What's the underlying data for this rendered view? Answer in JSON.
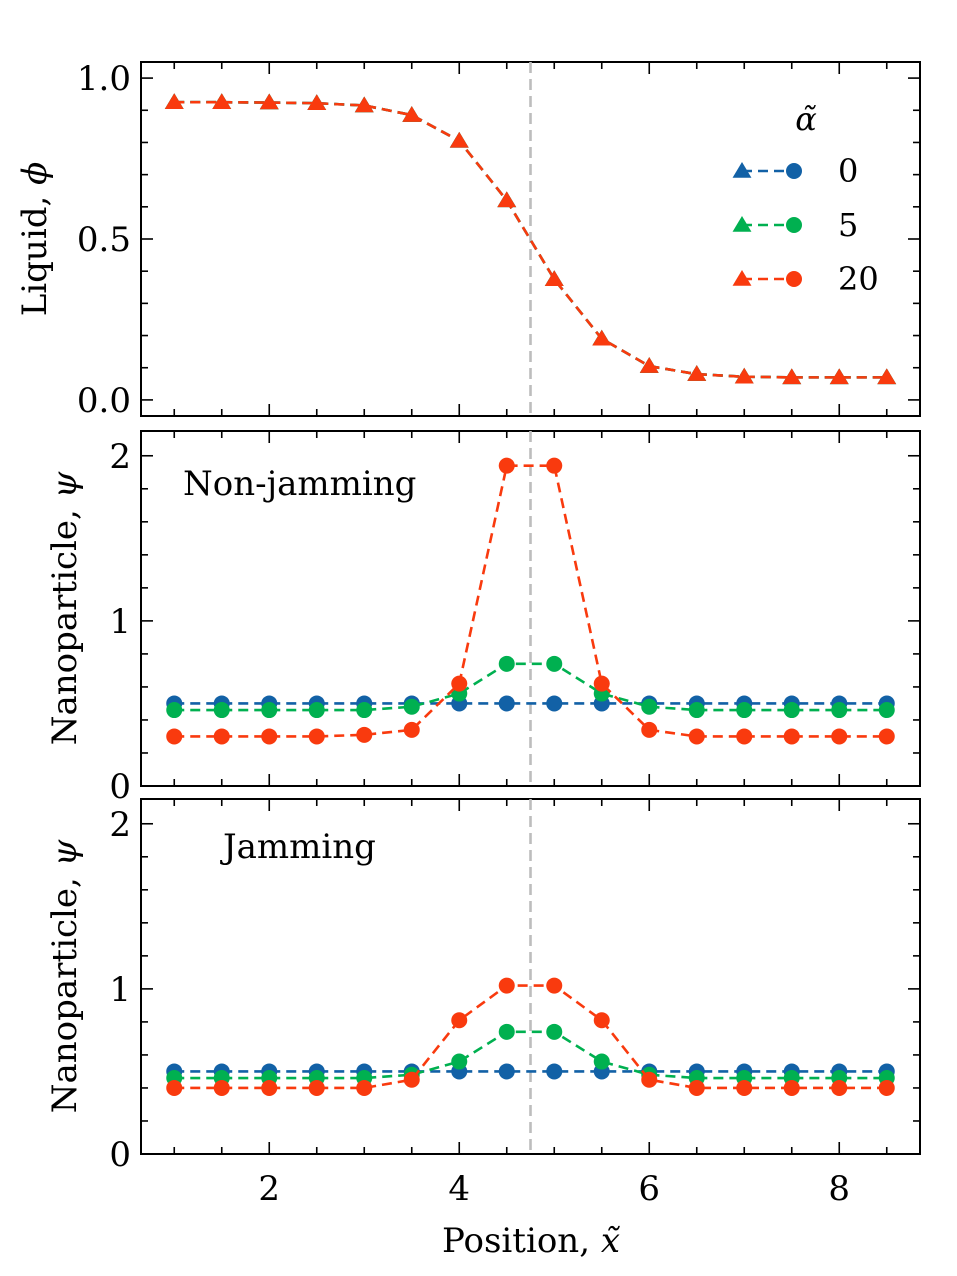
{
  "chart_data": {
    "type": "line",
    "x_label": "Position, x̃",
    "x_label_main": "Position, ",
    "x_label_symbol": "x̃",
    "xlim": [
      0.65,
      8.85
    ],
    "x_ticks": [
      2,
      4,
      6,
      8
    ],
    "x_tick_labels": [
      "2",
      "4",
      "6",
      "8"
    ],
    "x": [
      1.0,
      1.5,
      2.0,
      2.5,
      3.0,
      3.5,
      4.0,
      4.5,
      5.0,
      5.5,
      6.0,
      6.5,
      7.0,
      7.5,
      8.0,
      8.5
    ],
    "interface_line_x": 4.75,
    "legend": {
      "title": "α̃",
      "entries": [
        "0",
        "5",
        "20"
      ],
      "placement": "top-right of top panel"
    },
    "colors": {
      "0": "#1261a6",
      "5": "#00b050",
      "20": "#f93a0e",
      "interface": "#bdbdbd"
    },
    "panels": [
      {
        "id": "liquid",
        "ylabel_main": "Liquid, ",
        "ylabel_symbol": "ϕ",
        "ylim": [
          -0.05,
          1.05
        ],
        "y_ticks": [
          0.0,
          0.5,
          1.0
        ],
        "y_tick_labels": [
          "0.0",
          "0.5",
          "1.0"
        ],
        "annotation": "",
        "series": [
          {
            "name": "0",
            "marker": "triangle",
            "values": [
              0.925,
              0.925,
              0.924,
              0.922,
              0.915,
              0.885,
              0.805,
              0.62,
              0.375,
              0.19,
              0.105,
              0.08,
              0.072,
              0.07,
              0.07,
              0.07
            ]
          },
          {
            "name": "5",
            "marker": "triangle",
            "values": [
              0.925,
              0.925,
              0.924,
              0.922,
              0.915,
              0.885,
              0.805,
              0.62,
              0.375,
              0.19,
              0.105,
              0.08,
              0.072,
              0.07,
              0.07,
              0.07
            ]
          },
          {
            "name": "20",
            "marker": "triangle",
            "values": [
              0.925,
              0.925,
              0.924,
              0.922,
              0.915,
              0.885,
              0.805,
              0.62,
              0.375,
              0.19,
              0.105,
              0.08,
              0.072,
              0.07,
              0.07,
              0.07
            ]
          }
        ]
      },
      {
        "id": "non-jamming",
        "ylabel_main": "Nanoparticle, ",
        "ylabel_symbol": "ψ",
        "ylim": [
          0,
          2.15
        ],
        "y_ticks": [
          0,
          1,
          2
        ],
        "y_tick_labels": [
          "0",
          "1",
          "2"
        ],
        "annotation": "Non-jamming",
        "series": [
          {
            "name": "0",
            "marker": "circle",
            "values": [
              0.5,
              0.5,
              0.5,
              0.5,
              0.5,
              0.5,
              0.5,
              0.5,
              0.5,
              0.5,
              0.5,
              0.5,
              0.5,
              0.5,
              0.5,
              0.5
            ]
          },
          {
            "name": "5",
            "marker": "circle",
            "values": [
              0.46,
              0.46,
              0.46,
              0.46,
              0.46,
              0.48,
              0.56,
              0.74,
              0.74,
              0.56,
              0.48,
              0.46,
              0.46,
              0.46,
              0.46,
              0.46
            ]
          },
          {
            "name": "20",
            "marker": "circle",
            "values": [
              0.3,
              0.3,
              0.3,
              0.3,
              0.31,
              0.34,
              0.62,
              1.94,
              1.94,
              0.62,
              0.34,
              0.3,
              0.3,
              0.3,
              0.3,
              0.3
            ]
          }
        ]
      },
      {
        "id": "jamming",
        "ylabel_main": "Nanoparticle, ",
        "ylabel_symbol": "ψ",
        "ylim": [
          0,
          2.15
        ],
        "y_ticks": [
          0,
          1,
          2
        ],
        "y_tick_labels": [
          "0",
          "1",
          "2"
        ],
        "annotation": "Jamming",
        "series": [
          {
            "name": "0",
            "marker": "circle",
            "values": [
              0.5,
              0.5,
              0.5,
              0.5,
              0.5,
              0.5,
              0.5,
              0.5,
              0.5,
              0.5,
              0.5,
              0.5,
              0.5,
              0.5,
              0.5,
              0.5
            ]
          },
          {
            "name": "5",
            "marker": "circle",
            "values": [
              0.46,
              0.46,
              0.46,
              0.46,
              0.46,
              0.48,
              0.56,
              0.74,
              0.74,
              0.56,
              0.48,
              0.46,
              0.46,
              0.46,
              0.46,
              0.46
            ]
          },
          {
            "name": "20",
            "marker": "circle",
            "values": [
              0.4,
              0.4,
              0.4,
              0.4,
              0.4,
              0.45,
              0.81,
              1.02,
              1.02,
              0.81,
              0.45,
              0.4,
              0.4,
              0.4,
              0.4,
              0.4
            ]
          }
        ]
      }
    ]
  }
}
